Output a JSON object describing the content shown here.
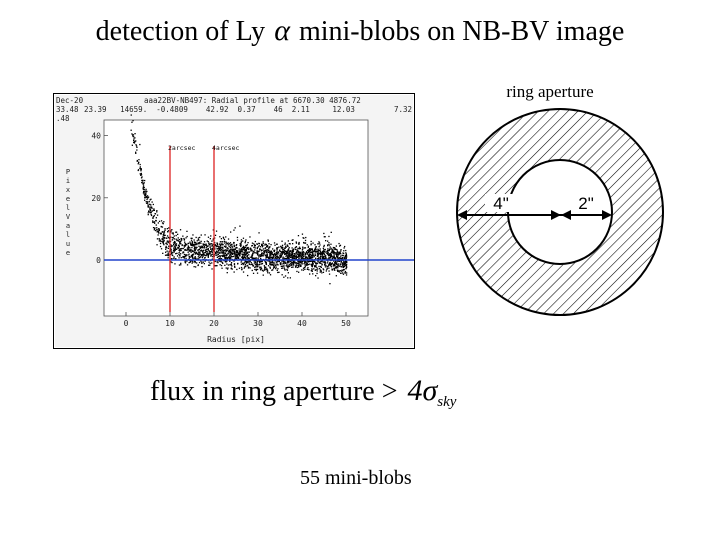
{
  "slide": {
    "title_prefix": "detection of Ly",
    "title_symbol": "α",
    "title_suffix": "mini-blobs on NB-BV image",
    "flux_text": "flux in ring aperture >",
    "flux_sigma": "4σ",
    "flux_sub": "sky",
    "blob_count": "55 mini-blobs"
  },
  "profile_plot": {
    "header_title": "aaa22BV-NB497: Radial profile at 6670.30 4876.72",
    "header_left1": "Dec-20",
    "header_left2": "33.48",
    "header_left3": ".48",
    "header_values": "23.39   14659.  -0.4809    42.92  0.37    46  2.11     12.03",
    "header_right": "7.32",
    "ylabel": "Pixel Value",
    "xlabel": "Radius [pix]",
    "marker_labels": [
      "2arcsec",
      "4arcsec"
    ],
    "x_ticks": [
      "0",
      "10",
      "20",
      "30",
      "40",
      "50"
    ],
    "y_ticks": [
      "40",
      "20",
      "0"
    ],
    "colors": {
      "marker": "#dd2222",
      "baseline": "#2244cc",
      "points": "#000000"
    }
  },
  "chart_data": {
    "type": "scatter",
    "xlabel": "Radius [pix]",
    "ylabel": "Pixel Value",
    "xlim": [
      -5,
      55
    ],
    "ylim": [
      -18,
      45
    ],
    "markers_x": [
      10,
      20
    ],
    "baseline_y": 0,
    "points": [
      [
        1,
        42
      ],
      [
        2,
        38
      ],
      [
        2.5,
        33
      ],
      [
        3,
        30
      ],
      [
        3.5,
        27
      ],
      [
        4,
        22
      ],
      [
        5,
        18
      ],
      [
        6,
        14
      ],
      [
        7,
        10
      ],
      [
        8,
        8
      ],
      [
        9,
        6
      ],
      [
        10,
        5
      ],
      [
        12,
        4
      ],
      [
        15,
        3
      ],
      [
        20,
        3
      ],
      [
        25,
        2
      ],
      [
        30,
        1
      ],
      [
        35,
        1
      ],
      [
        40,
        1
      ],
      [
        45,
        1
      ],
      [
        50,
        0
      ]
    ]
  },
  "ring_aperture": {
    "label": "ring aperture",
    "outer_label": "4\"",
    "inner_label": "2\""
  }
}
